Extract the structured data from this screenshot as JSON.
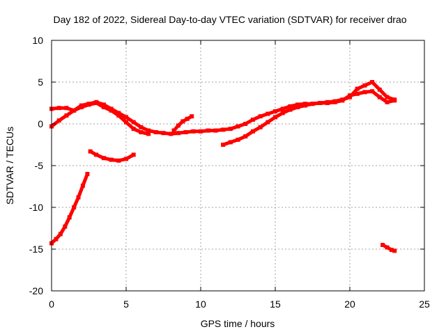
{
  "chart_data": {
    "type": "scatter",
    "title": "Day 182 of 2022, Sidereal Day-to-day VTEC variation (SDTVAR) for receiver drao",
    "xlabel": "GPS time / hours",
    "ylabel": "SDTVAR / TECUs",
    "xlim": [
      0,
      25
    ],
    "ylim": [
      -20,
      10
    ],
    "xticks": [
      0,
      5,
      10,
      15,
      20,
      25
    ],
    "yticks": [
      -20,
      -15,
      -10,
      -5,
      0,
      5,
      10
    ],
    "xtick_labels": [
      "0",
      "5",
      "10",
      "15",
      "20",
      "25"
    ],
    "ytick_labels": [
      "-20",
      "-15",
      "-10",
      "-5",
      "0",
      "5",
      "10"
    ],
    "grid": true,
    "color": "#ff0000",
    "series": [
      {
        "name": "track-upper-main",
        "x": [
          0,
          0.5,
          1,
          1.5,
          2,
          2.5,
          3,
          3.5,
          4,
          4.5,
          5,
          5.5,
          6,
          6.5,
          7,
          7.5,
          8,
          8.5,
          9,
          9.5,
          10,
          10.5,
          11,
          11.5,
          12,
          12.5,
          13,
          13.5,
          14,
          14.5,
          15,
          15.5,
          16,
          16.5,
          17,
          17.5,
          18,
          18.5,
          19,
          19.5,
          20,
          20.5,
          21,
          21.5,
          22,
          22.5,
          23
        ],
        "y": [
          1.8,
          1.9,
          1.9,
          1.6,
          2.2,
          2.4,
          2.6,
          2.3,
          1.8,
          1.3,
          0.8,
          0.2,
          -0.4,
          -0.8,
          -1.0,
          -1.1,
          -1.2,
          -1.1,
          -1.0,
          -0.9,
          -0.9,
          -0.8,
          -0.8,
          -0.7,
          -0.6,
          -0.3,
          0.0,
          0.5,
          0.9,
          1.2,
          1.5,
          1.8,
          2.1,
          2.3,
          2.4,
          2.4,
          2.5,
          2.5,
          2.6,
          2.8,
          3.4,
          3.6,
          3.8,
          3.9,
          3.2,
          2.6,
          2.8
        ]
      },
      {
        "name": "track-upper-lower-branch",
        "x": [
          0,
          0.5,
          1,
          1.5,
          2,
          2.5,
          3,
          3.5,
          4,
          4.5,
          5,
          5.5,
          6,
          6.5
        ],
        "y": [
          -0.3,
          0.4,
          1.0,
          1.6,
          2.0,
          2.3,
          2.5,
          2.0,
          1.6,
          1.0,
          0.2,
          -0.6,
          -1.0,
          -1.2
        ]
      },
      {
        "name": "track-evening",
        "x": [
          11.5,
          12,
          12.5,
          13,
          13.5,
          14,
          14.5,
          15,
          15.5,
          16,
          16.5,
          17,
          17.5,
          18,
          18.5,
          19,
          19.5,
          20,
          20.5,
          21,
          21.5,
          22,
          22.5,
          23
        ],
        "y": [
          -2.5,
          -2.2,
          -1.9,
          -1.5,
          -0.9,
          -0.4,
          0.2,
          0.8,
          1.3,
          1.7,
          2.0,
          2.2,
          2.4,
          2.5,
          2.6,
          2.7,
          2.9,
          3.2,
          4.2,
          4.6,
          5.0,
          4.1,
          3.2,
          2.9
        ]
      },
      {
        "name": "track-afternoon-bump",
        "x": [
          8.2,
          8.5,
          8.8,
          9.1,
          9.4
        ],
        "y": [
          -0.8,
          -0.2,
          0.3,
          0.6,
          0.9
        ]
      },
      {
        "name": "track-minus4",
        "x": [
          2.6,
          3,
          3.5,
          4,
          4.5,
          5,
          5.5
        ],
        "y": [
          -3.3,
          -3.7,
          -4.1,
          -4.3,
          -4.4,
          -4.2,
          -3.7
        ]
      },
      {
        "name": "track-morning-rise",
        "x": [
          0,
          0.3,
          0.6,
          0.9,
          1.2,
          1.5,
          1.8,
          2.1,
          2.4
        ],
        "y": [
          -14.3,
          -13.8,
          -13.2,
          -12.3,
          -11.2,
          -10.0,
          -8.8,
          -7.4,
          -6.0
        ]
      },
      {
        "name": "track-late",
        "x": [
          22.2,
          22.5,
          22.8,
          23
        ],
        "y": [
          -14.5,
          -14.8,
          -15.1,
          -15.2
        ]
      }
    ]
  }
}
